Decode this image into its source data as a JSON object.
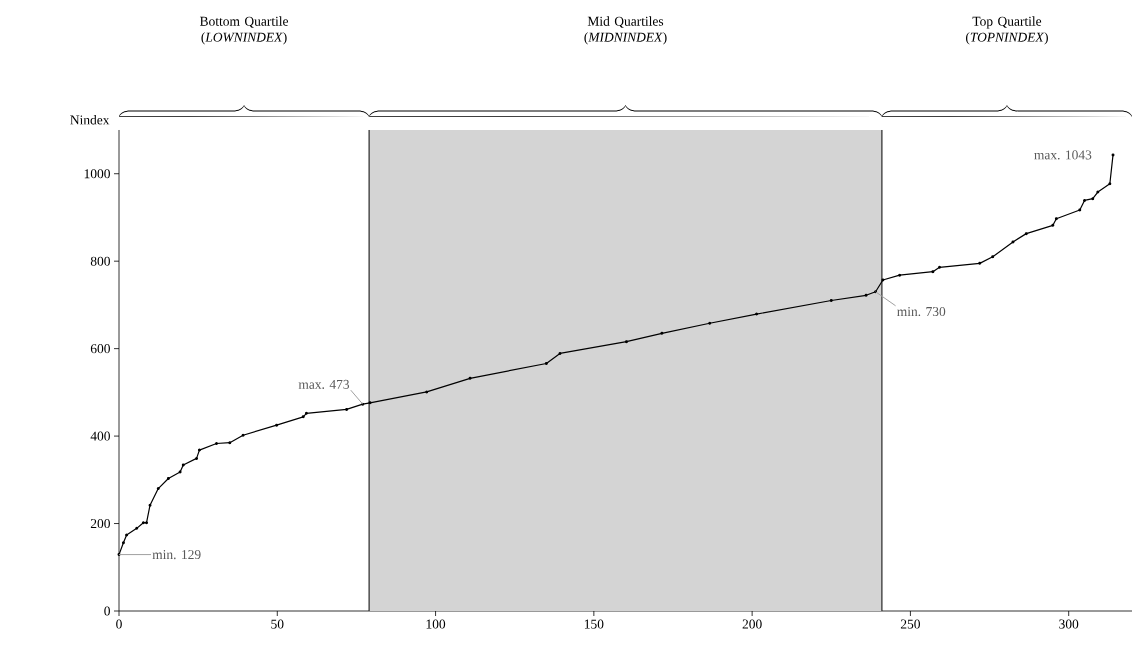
{
  "chart_data": {
    "type": "line",
    "ylabel": "Nindex",
    "x": [
      0,
      1.4,
      2.4,
      5.6,
      7.7,
      8.7,
      9.8,
      12.4,
      15.6,
      19.3,
      20.3,
      24.5,
      25.4,
      30.8,
      35,
      39.2,
      49.8,
      58.2,
      59.2,
      71.9,
      77,
      79.3,
      97.2,
      110.9,
      135,
      139.3,
      160.3,
      171.5,
      186.6,
      201.4,
      225,
      236,
      239,
      241.3,
      246.6,
      257.1,
      259.2,
      271.9,
      276,
      282.4,
      286.6,
      295,
      296.1,
      303.5,
      305,
      307.6,
      309.2,
      313,
      314
    ],
    "series": [
      {
        "color": "#000000",
        "values": [
          129,
          156,
          174,
          189,
          202,
          202,
          242,
          280,
          303,
          318,
          334,
          349,
          368,
          383,
          385,
          402,
          425,
          444,
          452,
          461,
          473,
          476,
          501,
          532,
          566,
          589,
          616,
          635,
          658,
          679,
          710,
          722,
          730,
          757,
          768,
          776,
          786,
          795,
          810,
          844,
          863,
          882,
          897,
          917,
          939,
          943,
          958,
          977,
          1043
        ]
      }
    ],
    "marker": "circle",
    "line_style": "solid",
    "xlim": [
      0,
      320
    ],
    "ylim": [
      0,
      1100
    ],
    "xticks": [
      0,
      50,
      100,
      150,
      200,
      250,
      300
    ],
    "yticks": [
      0,
      200,
      400,
      600,
      800,
      1000
    ],
    "ref_lines": [
      {
        "axis": "x",
        "value": 79,
        "color": "#000000"
      },
      {
        "axis": "x",
        "value": 241,
        "color": "#000000"
      }
    ],
    "bands": [
      {
        "axis": "x",
        "from": 79,
        "to": 241,
        "color": "#d4d4d4"
      }
    ],
    "annotations": [
      {
        "text": "min. 129",
        "x": 0,
        "y": 129
      },
      {
        "text": "max. 473",
        "x": 77,
        "y": 473
      },
      {
        "text": "min. 730",
        "x": 239,
        "y": 730
      },
      {
        "text": "max. 1043",
        "x": 314,
        "y": 1043
      },
      "Bottom Quartile (*LOWNINDEX*)",
      "Mid Quartiles (*MIDNINDEX*)",
      "Top Quartile (*TOPNINDEX*)"
    ]
  }
}
